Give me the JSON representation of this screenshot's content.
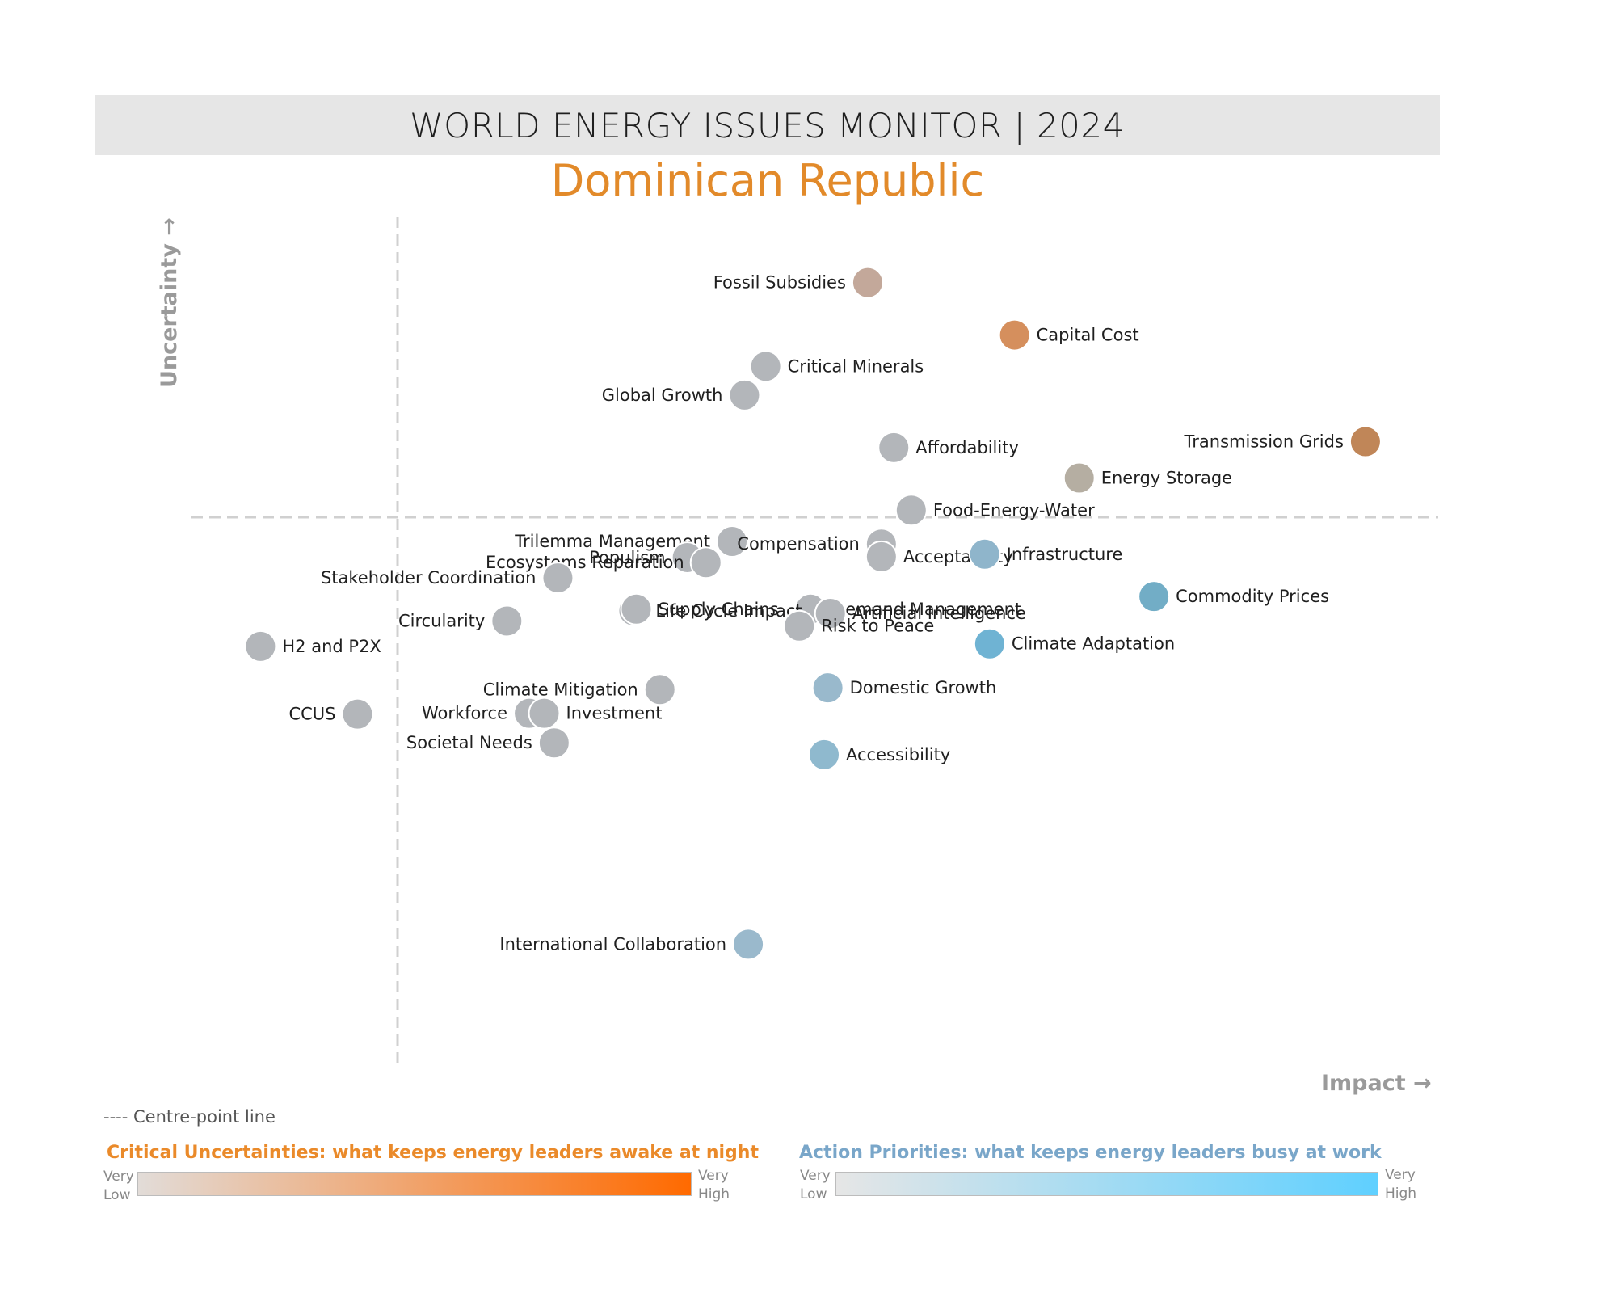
{
  "header": {
    "title": "WORLD ENERGY ISSUES MONITOR | 2024",
    "subtitle": "Dominican Republic"
  },
  "chart_data": {
    "type": "scatter",
    "xlabel": "Impact →",
    "ylabel": "Uncertainty →",
    "x_range": [
      0,
      100
    ],
    "y_range": [
      0,
      100
    ],
    "centre_point": {
      "x": 13.5,
      "y": 50
    },
    "grid": false,
    "points": [
      {
        "label": "Fossil Subsidies",
        "x": 54.8,
        "y": 92.2,
        "color": "#c3a89a",
        "label_side": "left"
      },
      {
        "label": "Capital Cost",
        "x": 66.6,
        "y": 86.0,
        "color": "#d58f5d",
        "label_side": "right"
      },
      {
        "label": "Critical Minerals",
        "x": 46.6,
        "y": 82.3,
        "color": "#b3b6ba",
        "label_side": "right"
      },
      {
        "label": "Global Growth",
        "x": 44.9,
        "y": 78.9,
        "color": "#b3b6ba",
        "label_side": "left"
      },
      {
        "label": "Transmission Grids",
        "x": 94.8,
        "y": 73.4,
        "color": "#c08658",
        "label_side": "left"
      },
      {
        "label": "Affordability",
        "x": 56.9,
        "y": 72.7,
        "color": "#b3b6ba",
        "label_side": "right"
      },
      {
        "label": "Energy Storage",
        "x": 71.8,
        "y": 69.1,
        "color": "#b5aea2",
        "label_side": "right"
      },
      {
        "label": "Food-Energy-Water",
        "x": 58.3,
        "y": 65.3,
        "color": "#b3b6ba",
        "label_side": "right"
      },
      {
        "label": "Trilemma Management",
        "x": 43.9,
        "y": 61.6,
        "color": "#b3b6ba",
        "label_side": "left"
      },
      {
        "label": "Populism",
        "x": 40.3,
        "y": 59.7,
        "color": "#b3b6ba",
        "label_side": "left"
      },
      {
        "label": "Ecosystems Reparation",
        "x": 41.8,
        "y": 59.1,
        "color": "#b3b6ba",
        "label_side": "left"
      },
      {
        "label": "Compensation",
        "x": 55.9,
        "y": 61.3,
        "color": "#b3b6ba",
        "label_side": "left"
      },
      {
        "label": "Acceptability",
        "x": 55.9,
        "y": 59.8,
        "color": "#b3b6ba",
        "label_side": "right"
      },
      {
        "label": "Infrastructure",
        "x": 64.2,
        "y": 60.1,
        "color": "#8fb5cb",
        "label_side": "right"
      },
      {
        "label": "Stakeholder Coordination",
        "x": 29.9,
        "y": 57.3,
        "color": "#b3b6ba",
        "label_side": "left"
      },
      {
        "label": "Demand Management",
        "x": 50.2,
        "y": 53.6,
        "color": "#b3b6ba",
        "label_side": "right"
      },
      {
        "label": "Commodity Prices",
        "x": 77.8,
        "y": 55.1,
        "color": "#72adc6",
        "label_side": "right"
      },
      {
        "label": "Life Cycle Impact",
        "x": 36.0,
        "y": 53.4,
        "color": "#b3b6ba",
        "label_side": "right"
      },
      {
        "label": "Artificial Intelligence",
        "x": 51.8,
        "y": 53.1,
        "color": "#b3b6ba",
        "label_side": "right"
      },
      {
        "label": "Circularity",
        "x": 25.8,
        "y": 52.2,
        "color": "#b3b6ba",
        "label_side": "left"
      },
      {
        "label": "Supply Chains",
        "x": 36.2,
        "y": 53.6,
        "color": "#b3b6ba",
        "label_side": "right"
      },
      {
        "label": "Risk to Peace",
        "x": 49.3,
        "y": 51.6,
        "color": "#b3b6ba",
        "label_side": "right"
      },
      {
        "label": "H2 and P2X",
        "x": 6.0,
        "y": 49.2,
        "color": "#b3b6ba",
        "label_side": "right"
      },
      {
        "label": "Climate Adaptation",
        "x": 64.6,
        "y": 49.5,
        "color": "#6fb3d3",
        "label_side": "right"
      },
      {
        "label": "Climate Mitigation",
        "x": 38.1,
        "y": 44.1,
        "color": "#b3b6ba",
        "label_side": "left"
      },
      {
        "label": "Domestic Growth",
        "x": 51.6,
        "y": 44.3,
        "color": "#99b9cc",
        "label_side": "right"
      },
      {
        "label": "CCUS",
        "x": 13.8,
        "y": 41.2,
        "color": "#b3b6ba",
        "label_side": "left"
      },
      {
        "label": "Workforce",
        "x": 27.6,
        "y": 41.3,
        "color": "#b3b6ba",
        "label_side": "left"
      },
      {
        "label": "Investment",
        "x": 28.8,
        "y": 41.3,
        "color": "#b3b6ba",
        "label_side": "right"
      },
      {
        "label": "Societal Needs",
        "x": 29.6,
        "y": 37.8,
        "color": "#b3b6ba",
        "label_side": "left"
      },
      {
        "label": "Accessibility",
        "x": 51.3,
        "y": 36.4,
        "color": "#8fb9ce",
        "label_side": "right"
      },
      {
        "label": "International Collaboration",
        "x": 45.2,
        "y": 14.0,
        "color": "#9ab9cc",
        "label_side": "left"
      }
    ]
  },
  "legend": {
    "centre_note": "---- Centre-point line",
    "critical": {
      "title": "Critical Uncertainties: what keeps energy leaders awake at night",
      "low_1": "Very",
      "low_2": "Low",
      "high_1": "Very",
      "high_2": "High",
      "color_low": "#e2dcd8",
      "color_high": "#ff6a00"
    },
    "action": {
      "title": "Action Priorities: what keeps energy leaders busy at work",
      "low_1": "Very",
      "low_2": "Low",
      "high_1": "Very",
      "high_2": "High",
      "color_low": "#e6e6e6",
      "color_high": "#5fd0ff"
    }
  }
}
